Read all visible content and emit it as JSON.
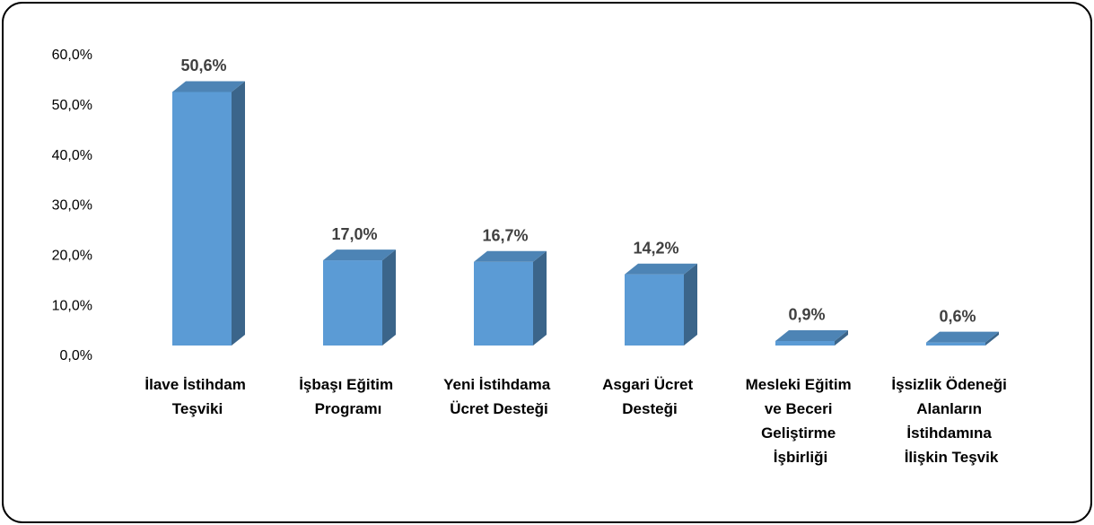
{
  "chart_data": {
    "type": "bar3d",
    "categories": [
      "İlave İstihdam Teşviki",
      "İşbaşı Eğitim Programı",
      "Yeni İstihdama Ücret Desteği",
      "Asgari Ücret Desteği",
      "Mesleki Eğitim ve Beceri Geliştirme İşbirliği",
      "İşsizlik Ödeneği Alanların İstihdamına İlişkin Teşvik"
    ],
    "values": [
      50.6,
      17.0,
      16.7,
      14.2,
      0.9,
      0.6
    ],
    "value_labels": [
      "50,6%",
      "17,0%",
      "16,7%",
      "14,2%",
      "0,9%",
      "0,6%"
    ],
    "color": "#5b9bd5",
    "ylim": [
      0,
      60
    ],
    "yticks": [
      {
        "value": 0,
        "label": "0,0%"
      },
      {
        "value": 10,
        "label": "10,0%"
      },
      {
        "value": 20,
        "label": "20,0%"
      },
      {
        "value": 30,
        "label": "30,0%"
      },
      {
        "value": 40,
        "label": "40,0%"
      },
      {
        "value": 50,
        "label": "50,0%"
      },
      {
        "value": 60,
        "label": "60,0%"
      }
    ],
    "grid": false
  }
}
